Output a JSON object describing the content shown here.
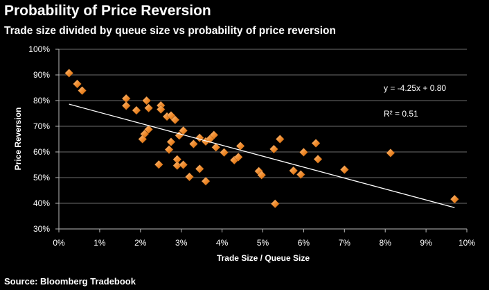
{
  "title": "Probability of Price Reversion",
  "subtitle": "Trade size divided by queue size vs probability of price reversion",
  "source": "Source: Bloomberg Tradebook",
  "colors": {
    "background": "#000000",
    "marker": "#F08A2A",
    "marker_highlight": "#FBC58A",
    "trendline": "#FFFFFF",
    "grid": "#6E6E6E"
  },
  "chart_data": {
    "type": "scatter",
    "xlabel": "Trade Size / Queue Size",
    "ylabel": "Price Reversion",
    "xlim": [
      0,
      10
    ],
    "ylim": [
      30,
      100
    ],
    "x_ticks": [
      0,
      1,
      2,
      3,
      4,
      5,
      6,
      7,
      8,
      9,
      10
    ],
    "y_ticks": [
      30,
      40,
      50,
      60,
      70,
      80,
      90,
      100
    ],
    "x_tick_labels": [
      "0%",
      "1%",
      "2%",
      "3%",
      "4%",
      "5%",
      "6%",
      "7%",
      "8%",
      "9%",
      "10%"
    ],
    "y_tick_labels": [
      "30%",
      "40%",
      "50%",
      "60%",
      "70%",
      "80%",
      "90%",
      "100%"
    ],
    "horizontal_grid": true,
    "trendline": {
      "x": [
        0.25,
        9.7
      ],
      "y": [
        78.6,
        38.3
      ]
    },
    "annotations": {
      "equation": "y = -4.25x + 0.80",
      "r_squared": "R² = 0.51"
    },
    "points": [
      {
        "x": 0.25,
        "y": 90.7
      },
      {
        "x": 0.45,
        "y": 86.5
      },
      {
        "x": 0.57,
        "y": 83.9
      },
      {
        "x": 1.65,
        "y": 80.8
      },
      {
        "x": 1.65,
        "y": 78.0
      },
      {
        "x": 1.9,
        "y": 76.2
      },
      {
        "x": 2.15,
        "y": 80.0
      },
      {
        "x": 2.2,
        "y": 77.1
      },
      {
        "x": 2.5,
        "y": 78.1
      },
      {
        "x": 2.5,
        "y": 76.6
      },
      {
        "x": 2.65,
        "y": 73.8
      },
      {
        "x": 2.75,
        "y": 74.2
      },
      {
        "x": 2.85,
        "y": 72.5
      },
      {
        "x": 2.2,
        "y": 68.8
      },
      {
        "x": 2.1,
        "y": 67.0
      },
      {
        "x": 2.05,
        "y": 65.0
      },
      {
        "x": 2.95,
        "y": 66.4
      },
      {
        "x": 3.05,
        "y": 68.3
      },
      {
        "x": 2.75,
        "y": 63.9
      },
      {
        "x": 2.7,
        "y": 60.9
      },
      {
        "x": 2.45,
        "y": 55.1
      },
      {
        "x": 2.9,
        "y": 57.1
      },
      {
        "x": 2.9,
        "y": 54.7
      },
      {
        "x": 3.05,
        "y": 55.0
      },
      {
        "x": 3.2,
        "y": 50.3
      },
      {
        "x": 3.3,
        "y": 63.1
      },
      {
        "x": 3.45,
        "y": 65.5
      },
      {
        "x": 3.45,
        "y": 53.4
      },
      {
        "x": 3.6,
        "y": 64.1
      },
      {
        "x": 3.6,
        "y": 48.6
      },
      {
        "x": 3.7,
        "y": 65.0
      },
      {
        "x": 3.8,
        "y": 66.6
      },
      {
        "x": 3.85,
        "y": 61.8
      },
      {
        "x": 4.05,
        "y": 59.8
      },
      {
        "x": 4.3,
        "y": 56.8
      },
      {
        "x": 4.4,
        "y": 58.0
      },
      {
        "x": 4.45,
        "y": 62.3
      },
      {
        "x": 4.9,
        "y": 52.5
      },
      {
        "x": 4.97,
        "y": 51.0
      },
      {
        "x": 5.27,
        "y": 61.1
      },
      {
        "x": 5.3,
        "y": 39.8
      },
      {
        "x": 5.42,
        "y": 65.0
      },
      {
        "x": 5.75,
        "y": 52.7
      },
      {
        "x": 5.93,
        "y": 51.2
      },
      {
        "x": 6.0,
        "y": 59.9
      },
      {
        "x": 6.3,
        "y": 63.4
      },
      {
        "x": 6.35,
        "y": 57.2
      },
      {
        "x": 7.0,
        "y": 53.1
      },
      {
        "x": 8.13,
        "y": 59.6
      },
      {
        "x": 9.7,
        "y": 41.6
      }
    ]
  }
}
